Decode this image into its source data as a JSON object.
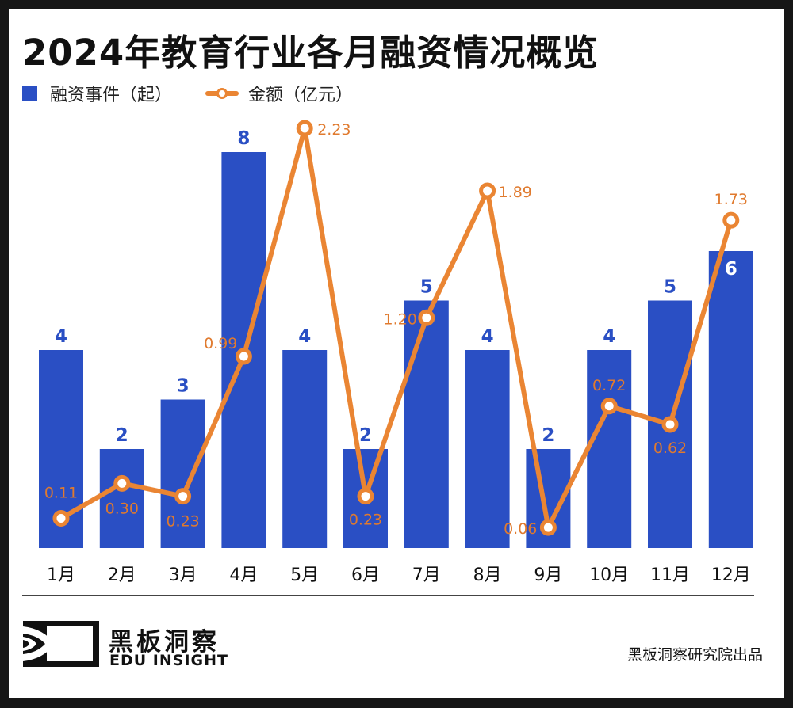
{
  "header": {
    "title": "2024年教育行业各月融资情况概览"
  },
  "legend": {
    "bar_label": "融资事件（起）",
    "line_label": "金额（亿元）"
  },
  "colors": {
    "bar": "#2A4FC4",
    "bar_label": "#2A4FC4",
    "bar_label_inside": "#ffffff",
    "line": "#EA8533",
    "line_label": "#E07A2E"
  },
  "chart_data": {
    "type": "bar",
    "title": "2024年教育行业各月融资情况概览",
    "xlabel": "",
    "ylabel": "",
    "categories": [
      "1月",
      "2月",
      "3月",
      "4月",
      "5月",
      "6月",
      "7月",
      "8月",
      "9月",
      "10月",
      "11月",
      "12月"
    ],
    "series": [
      {
        "name": "融资事件（起）",
        "type": "bar",
        "values": [
          4,
          2,
          3,
          8,
          4,
          2,
          5,
          4,
          2,
          4,
          5,
          6
        ]
      },
      {
        "name": "金额（亿元）",
        "type": "line",
        "values": [
          0.11,
          0.3,
          0.23,
          0.99,
          2.23,
          0.23,
          1.2,
          1.89,
          0.06,
          0.72,
          0.62,
          1.73
        ]
      }
    ],
    "bar_ylim": [
      0,
      8
    ],
    "line_ylim": [
      0,
      2.23
    ],
    "grid": false,
    "legend": "top-left"
  },
  "footer": {
    "brand_cn": "黑板洞察",
    "brand_en": "EDU INSIGHT",
    "credit": "黑板洞察研究院出品"
  }
}
